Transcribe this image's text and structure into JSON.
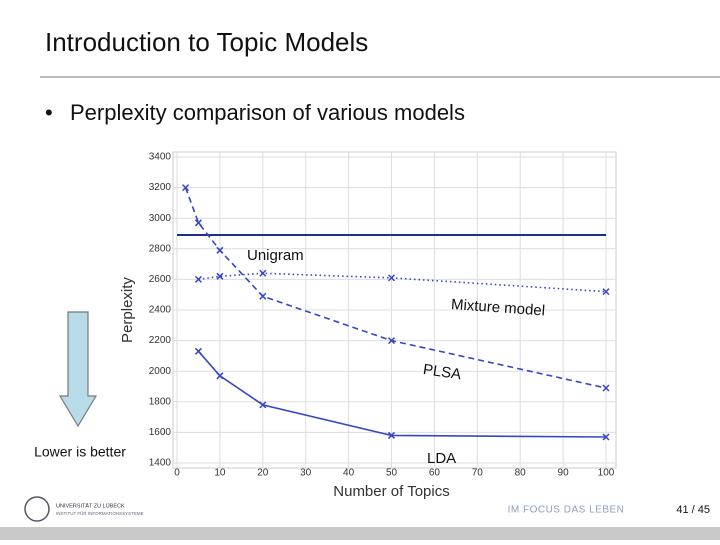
{
  "slide": {
    "title": "Introduction to Topic Models",
    "bullet": "Perplexity comparison of various models",
    "note": "Lower is better",
    "logo": "UNIVERSITÄT ZU LÜBECK",
    "logo_sub": "INSTITUT FÜR INFORMATIONSSYSTEME",
    "footer": "IM FOCUS DAS LEBEN",
    "page": "41 / 45"
  },
  "chart_data": {
    "type": "line",
    "xlabel": "Number of Topics",
    "ylabel": "Perplexity",
    "xlim": [
      0,
      100
    ],
    "xticks": [
      0,
      10,
      20,
      30,
      40,
      50,
      60,
      70,
      80,
      90,
      100
    ],
    "ylim": [
      1400,
      3400
    ],
    "yticks": [
      1400,
      1600,
      1800,
      2000,
      2200,
      2400,
      2600,
      2800,
      3000,
      3200,
      3400
    ],
    "grid": true,
    "series": [
      {
        "name": "Unigram",
        "color": "#1f2e8c",
        "style": "solid",
        "markers": false,
        "x": [
          0,
          100
        ],
        "values": [
          2890,
          2890
        ]
      },
      {
        "name": "Mixture model",
        "color": "#3446c8",
        "style": "dotted",
        "markers": true,
        "x": [
          5,
          10,
          20,
          50,
          100
        ],
        "values": [
          2600,
          2620,
          2640,
          2610,
          2520
        ]
      },
      {
        "name": "PLSA",
        "color": "#3446c8",
        "style": "dashed",
        "markers": true,
        "x": [
          2,
          5,
          10,
          20,
          50,
          100
        ],
        "values": [
          3200,
          2970,
          2790,
          2490,
          2200,
          1890
        ]
      },
      {
        "name": "LDA",
        "color": "#3446c8",
        "style": "solid",
        "markers": true,
        "x": [
          5,
          10,
          20,
          50,
          100
        ],
        "values": [
          2130,
          1970,
          1780,
          1580,
          1570
        ]
      }
    ]
  }
}
